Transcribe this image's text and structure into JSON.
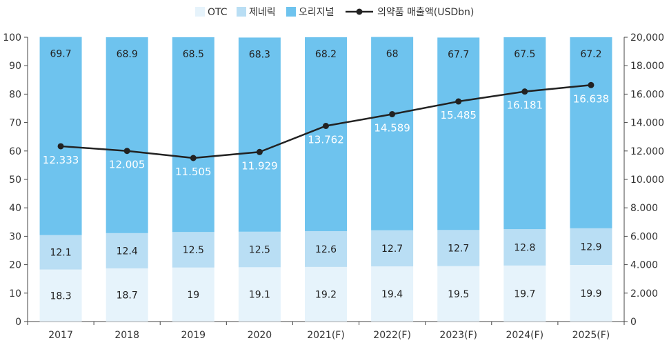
{
  "chart_data": {
    "type": "bar",
    "stacked": true,
    "categories": [
      "2017",
      "2018",
      "2019",
      "2020",
      "2021(F)",
      "2022(F)",
      "2023(F)",
      "2024(F)",
      "2025(F)"
    ],
    "series": [
      {
        "name": "OTC",
        "color": "#e6f3fb",
        "values": [
          18.3,
          18.7,
          19.0,
          19.1,
          19.2,
          19.4,
          19.5,
          19.7,
          19.9
        ]
      },
      {
        "name": "제네릭",
        "color": "#b9def4",
        "values": [
          12.1,
          12.4,
          12.5,
          12.5,
          12.6,
          12.7,
          12.7,
          12.8,
          12.9
        ]
      },
      {
        "name": "오리지널",
        "color": "#6ec3ee",
        "values": [
          69.7,
          68.9,
          68.5,
          68.3,
          68.2,
          68.0,
          67.7,
          67.5,
          67.2
        ]
      }
    ],
    "line_series": {
      "name": "의약품 매출액(USDbn)",
      "color": "#222222",
      "axis": "right",
      "values": [
        12333,
        12005,
        11505,
        11929,
        13762,
        14589,
        15485,
        16181,
        16638
      ],
      "labels": [
        "12.333",
        "12.005",
        "11.505",
        "11.929",
        "13.762",
        "14.589",
        "15.485",
        "16.181",
        "16.638"
      ]
    },
    "y_left": {
      "min": 0,
      "max": 100,
      "ticks": [
        "0",
        "10",
        "20",
        "30",
        "40",
        "50",
        "60",
        "70",
        "80",
        "90",
        "100"
      ]
    },
    "y_right": {
      "min": 0,
      "max": 20000,
      "ticks": [
        "0",
        "2.000",
        "4.000",
        "6.000",
        "8.000",
        "10.000",
        "12.000",
        "14.000",
        "16.000",
        "18.000",
        "20,000"
      ]
    },
    "legend_position": "top-center",
    "grid": false
  }
}
